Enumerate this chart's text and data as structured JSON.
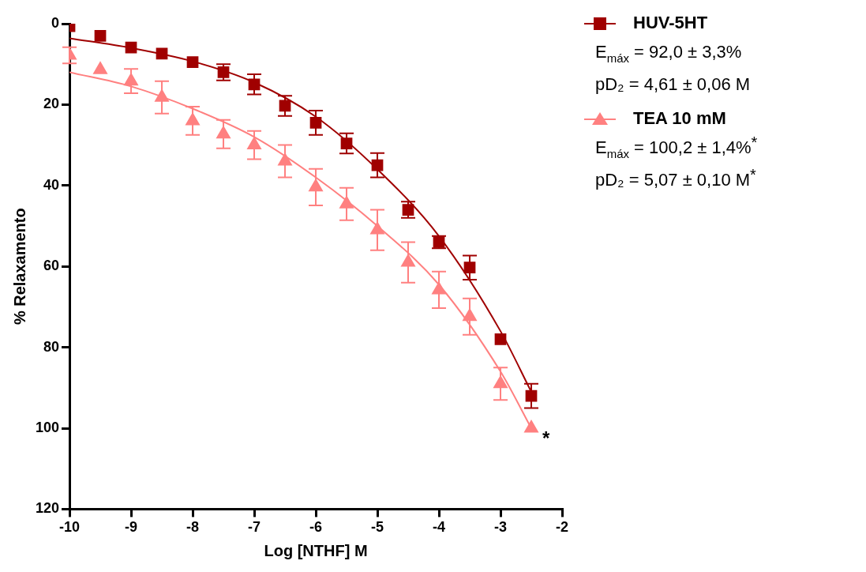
{
  "chart_data": {
    "type": "line",
    "xlabel": "Log [NTHF] M",
    "ylabel": "% Relaxamento",
    "xlim": [
      -10,
      -2
    ],
    "xticks": [
      -10,
      -9,
      -8,
      -7,
      -6,
      -5,
      -4,
      -3,
      -2
    ],
    "ylim": [
      120,
      0
    ],
    "yticks": [
      0,
      20,
      40,
      60,
      80,
      100,
      120
    ],
    "grid": false,
    "legend": "top right",
    "line_style": "solid",
    "series": [
      {
        "name": "HUV-5HT",
        "type": "scatter",
        "marker": "square",
        "color": "#a00000",
        "x": [
          -10,
          -9.5,
          -9,
          -8.5,
          -8,
          -7.5,
          -7,
          -6.5,
          -6,
          -5.5,
          -5,
          -4.5,
          -4,
          -3.5,
          -3,
          -2.5
        ],
        "values": [
          0.6,
          3,
          5.9,
          7.4,
          9.5,
          12,
          15,
          20.3,
          24.5,
          29.6,
          35,
          46,
          54,
          60.3,
          78,
          92
        ],
        "errors": [
          null,
          null,
          null,
          null,
          null,
          2,
          2.5,
          2.5,
          3,
          2.5,
          3,
          2,
          1.5,
          3,
          null,
          3
        ]
      },
      {
        "name": "TEA 10 mM",
        "type": "scatter",
        "marker": "triangle",
        "color": "#ff8080",
        "x": [
          -10,
          -9.5,
          -9,
          -8.5,
          -8,
          -7.5,
          -7,
          -6.5,
          -6,
          -5.5,
          -5,
          -4.5,
          -4,
          -3.5,
          -3,
          -2.5
        ],
        "values": [
          7.8,
          11.4,
          14.2,
          18.2,
          24,
          27.3,
          30,
          34,
          40.4,
          44.6,
          51,
          59,
          65.8,
          72.4,
          89,
          100
        ],
        "errors": [
          2,
          null,
          3,
          4,
          3.5,
          3.5,
          3.5,
          4,
          4.5,
          4,
          5,
          5,
          4.5,
          4.5,
          4,
          null
        ]
      },
      {
        "type": "line",
        "marker": "none",
        "color": "#a00000",
        "x": [
          -10,
          -9,
          -8,
          -7,
          -6,
          -5,
          -4,
          -3,
          -2.5
        ],
        "values": [
          3.6,
          6,
          9.3,
          14.5,
          23,
          36,
          52.5,
          76,
          91
        ]
      },
      {
        "type": "line",
        "marker": "none",
        "color": "#ff8080",
        "x": [
          -10,
          -9,
          -8,
          -7,
          -6,
          -5,
          -4,
          -3,
          -2.5
        ],
        "values": [
          12,
          15.5,
          21,
          28,
          38,
          50,
          64.5,
          86,
          100
        ]
      }
    ],
    "annotations": [
      "E$_{máx}$ = 92,0 ± 3,3%",
      "pD₂ = 4,61 ± 0,06 M",
      "E$_{máx}$ = 100,2 ± 1,4%$^{*}$",
      "pD₂ = 5,07 ± 0,10 M$^{*}$",
      {
        "text": "*",
        "x": -2.5,
        "y": 100
      }
    ]
  }
}
